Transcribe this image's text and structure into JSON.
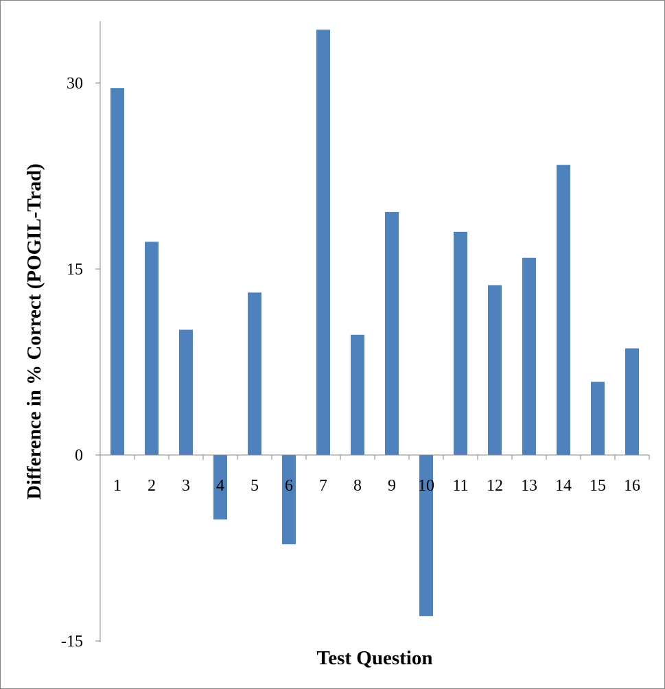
{
  "chart_data": {
    "type": "bar",
    "title": "",
    "xlabel": "Test Question",
    "ylabel": "Difference in % Correct (POGIL-Trad)",
    "categories": [
      "1",
      "2",
      "3",
      "4",
      "5",
      "6",
      "7",
      "8",
      "9",
      "10",
      "11",
      "12",
      "13",
      "14",
      "15",
      "16"
    ],
    "values": [
      29.6,
      17.2,
      10.1,
      -5.2,
      13.1,
      -7.2,
      34.3,
      9.7,
      19.6,
      -13.0,
      18.0,
      13.7,
      15.9,
      23.4,
      5.9,
      8.6
    ],
    "yticks": [
      -15,
      0,
      15,
      30
    ],
    "ylim": [
      -15,
      35
    ],
    "grid": false,
    "legend": "none",
    "bar_color": "#4F81BD"
  }
}
